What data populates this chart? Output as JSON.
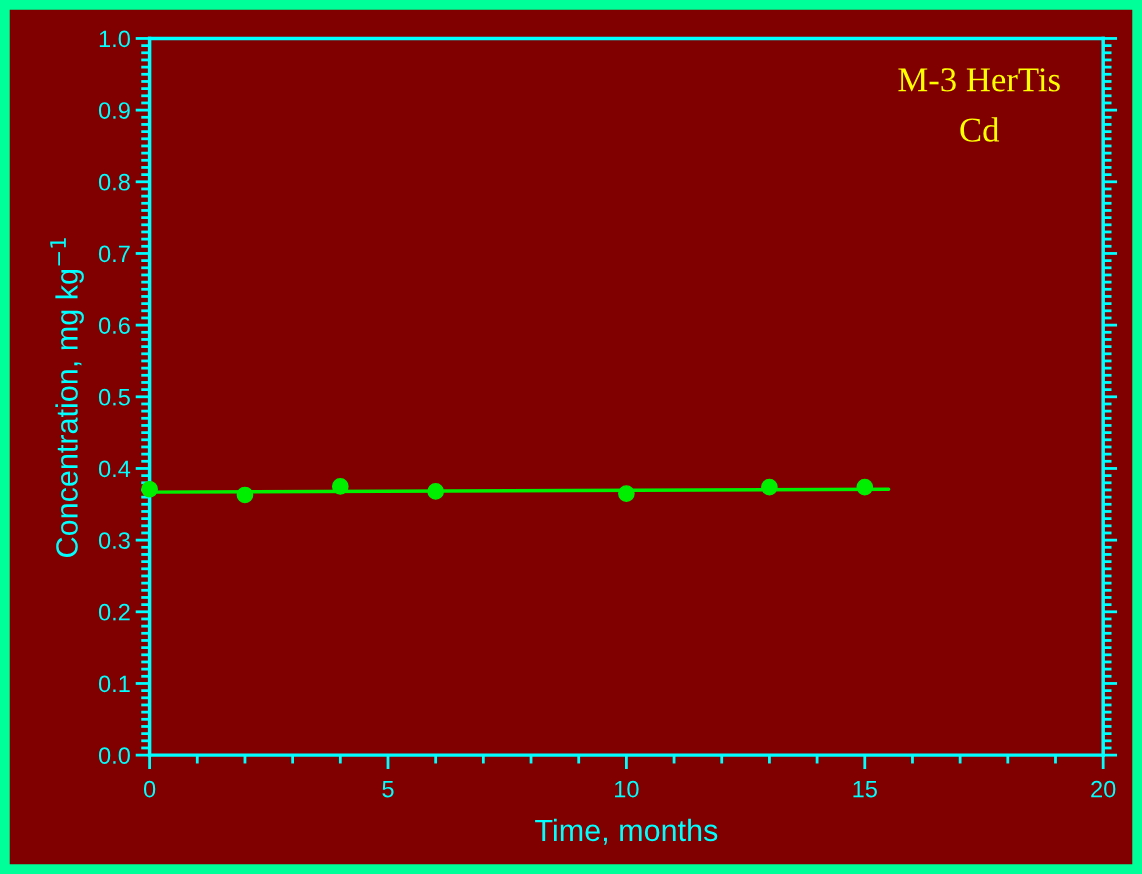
{
  "chart_data": {
    "type": "scatter",
    "title": "M-3 HerTis",
    "subtitle": "Cd",
    "xlabel": "Time, months",
    "ylabel": "Concentration, mg kg$^{−1}$",
    "series": [
      {
        "marker": "circle",
        "color": "#00ee00",
        "x": [
          0,
          2,
          4,
          6,
          10,
          13,
          15
        ],
        "values": [
          0.371,
          0.363,
          0.375,
          0.368,
          0.365,
          0.374,
          0.374
        ]
      },
      {
        "type": "line",
        "marker": "none",
        "line_style": "solid",
        "color": "#00ee00",
        "x": [
          0,
          15.5
        ],
        "values": [
          0.367,
          0.371
        ]
      }
    ],
    "xlim": [
      0,
      20
    ],
    "xticks": [
      0,
      5,
      10,
      15,
      20
    ],
    "ylim": [
      0,
      1.0
    ],
    "yticks": [
      {
        "value": 0,
        "label": "0.0"
      },
      0.1,
      0.2,
      0.3,
      0.4,
      0.5,
      0.6,
      0.7,
      0.8,
      0.9,
      {
        "value": 1.0,
        "label": "1.0"
      }
    ],
    "grid": false,
    "legend": false
  }
}
